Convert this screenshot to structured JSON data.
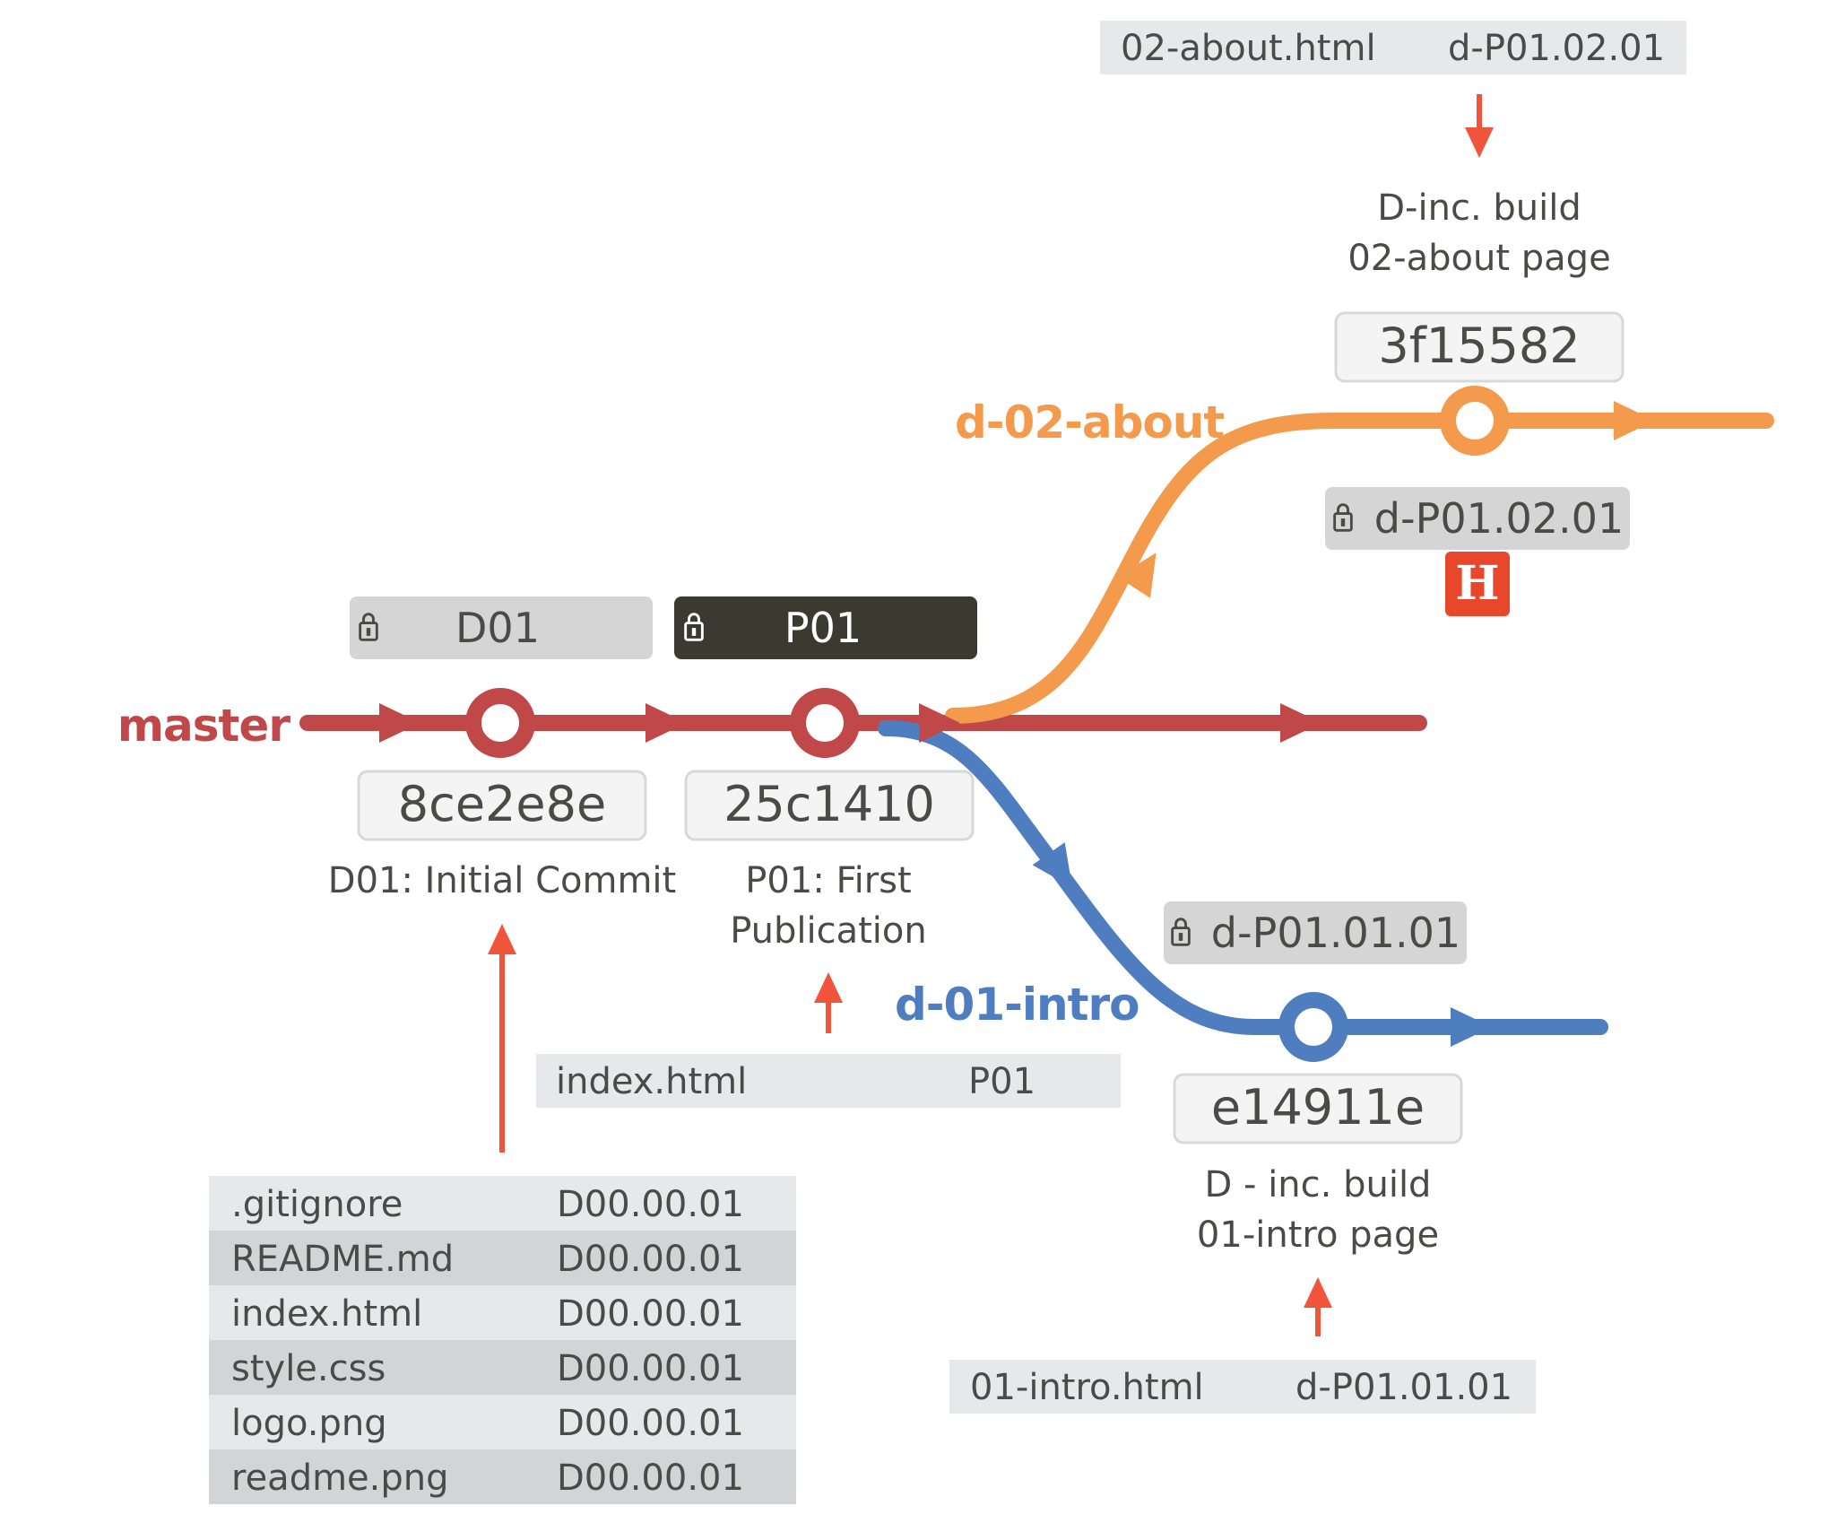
{
  "colors": {
    "master": "#c04848",
    "about": "#f49a4c",
    "intro": "#4f7ec0",
    "arrow": "#f0553c",
    "tag_bg": "#d5d5d5",
    "tag_dark_bg": "#3a3a30",
    "file_bg_light": "#e6e8e9",
    "file_bg_dark": "#d2d4d5",
    "hash_bg": "#f4f4f4",
    "text": "#4a4a48",
    "badge": "#e8472c"
  },
  "branches": {
    "master": {
      "label": "master"
    },
    "about": {
      "label": "d-02-about"
    },
    "intro": {
      "label": "d-01-intro"
    }
  },
  "commits": {
    "c1": {
      "hash": "8ce2e8e",
      "message": [
        "D01: Initial Commit"
      ],
      "tag": "D01"
    },
    "c2": {
      "hash": "25c1410",
      "message": [
        "P01: First",
        "Publication"
      ],
      "tag": "P01"
    },
    "c3": {
      "hash": "3f15582",
      "message": [
        "D-inc. build",
        "02-about page"
      ],
      "tag": "d-P01.02.01",
      "badge": "H"
    },
    "c4": {
      "hash": "e14911e",
      "message": [
        "D - inc. build",
        "01-intro page"
      ],
      "tag": "d-P01.01.01"
    }
  },
  "files": {
    "initial": [
      {
        "name": ".gitignore",
        "version": "D00.00.01"
      },
      {
        "name": "README.md",
        "version": "D00.00.01"
      },
      {
        "name": "index.html",
        "version": "D00.00.01"
      },
      {
        "name": "style.css",
        "version": "D00.00.01"
      },
      {
        "name": "logo.png",
        "version": "D00.00.01"
      },
      {
        "name": "readme.png",
        "version": "D00.00.01"
      }
    ],
    "p01": [
      {
        "name": "index.html",
        "version": "P01"
      }
    ],
    "about": [
      {
        "name": "02-about.html",
        "version": "d-P01.02.01"
      }
    ],
    "intro": [
      {
        "name": "01-intro.html",
        "version": "d-P01.01.01"
      }
    ]
  }
}
